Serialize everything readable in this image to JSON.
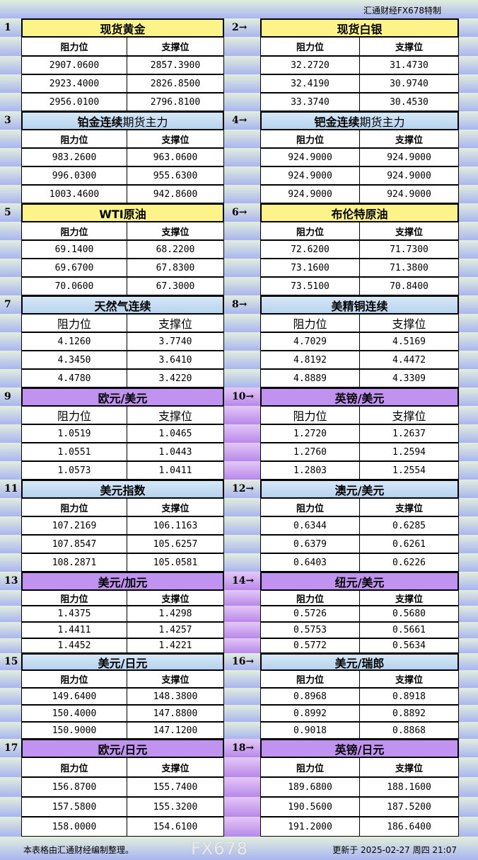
{
  "header": {
    "brand": "汇通财经FX678特制"
  },
  "labels": {
    "resistance": "阻力位",
    "support": "支撑位"
  },
  "colors": {
    "yellow": "#fdf489",
    "blue": "#c6dff2",
    "purple": "#c193f0"
  },
  "sections": [
    {
      "color": "yellow",
      "left": {
        "num": "1",
        "title": "现货黄金",
        "title_normal": "",
        "rows": [
          [
            "2907.0600",
            "2857.3900"
          ],
          [
            "2923.4000",
            "2826.8500"
          ],
          [
            "2956.0100",
            "2796.8100"
          ]
        ]
      },
      "right": {
        "num": "2→",
        "title": "现货白银",
        "title_normal": "",
        "rows": [
          [
            "32.2720",
            "31.4730"
          ],
          [
            "32.4190",
            "30.9740"
          ],
          [
            "33.3740",
            "30.4530"
          ]
        ]
      }
    },
    {
      "color": "blue",
      "left": {
        "num": "3",
        "title": "铂金连续",
        "title_normal": "期货主力",
        "rows": [
          [
            "983.2600",
            "963.0600"
          ],
          [
            "996.0300",
            "955.6300"
          ],
          [
            "1003.4600",
            "942.8600"
          ]
        ]
      },
      "right": {
        "num": "4→",
        "title": "钯金连续",
        "title_normal": "期货主力",
        "rows": [
          [
            "924.9000",
            "924.9000"
          ],
          [
            "924.9000",
            "924.9000"
          ],
          [
            "924.9000",
            "924.9000"
          ]
        ]
      }
    },
    {
      "color": "yellow",
      "left": {
        "num": "5",
        "title": "WTI原油",
        "title_normal": "",
        "rows": [
          [
            "69.1400",
            "68.2200"
          ],
          [
            "69.6700",
            "67.8300"
          ],
          [
            "70.0600",
            "67.3000"
          ]
        ]
      },
      "right": {
        "num": "6→",
        "title": "布伦特原油",
        "title_normal": "",
        "rows": [
          [
            "72.6200",
            "71.7300"
          ],
          [
            "73.1600",
            "71.3800"
          ],
          [
            "73.5100",
            "70.8400"
          ]
        ]
      }
    },
    {
      "color": "blue",
      "left": {
        "num": "7",
        "title": "天然气连续",
        "title_normal": "",
        "rows": [
          [
            "4.1260",
            "3.7740"
          ],
          [
            "4.3450",
            "3.6410"
          ],
          [
            "4.4780",
            "3.4220"
          ]
        ]
      },
      "right": {
        "num": "8→",
        "title": "美精铜连续",
        "title_normal": "",
        "rows": [
          [
            "4.7029",
            "4.5169"
          ],
          [
            "4.8192",
            "4.4472"
          ],
          [
            "4.8889",
            "4.3309"
          ]
        ]
      }
    },
    {
      "color": "purple",
      "left": {
        "num": "9",
        "title": "欧元/美元",
        "title_normal": "",
        "rows": [
          [
            "1.0519",
            "1.0465"
          ],
          [
            "1.0551",
            "1.0443"
          ],
          [
            "1.0573",
            "1.0411"
          ]
        ]
      },
      "right": {
        "num": "10→",
        "title": "英镑/美元",
        "title_normal": "",
        "rows": [
          [
            "1.2720",
            "1.2637"
          ],
          [
            "1.2760",
            "1.2594"
          ],
          [
            "1.2803",
            "1.2554"
          ]
        ]
      }
    },
    {
      "color": "blue",
      "left": {
        "num": "11",
        "title": "美元指数",
        "title_normal": "",
        "rows": [
          [
            "107.2169",
            "106.1163"
          ],
          [
            "107.8547",
            "105.6257"
          ],
          [
            "108.2871",
            "105.0581"
          ]
        ]
      },
      "right": {
        "num": "12→",
        "title": "澳元/美元",
        "title_normal": "",
        "rows": [
          [
            "0.6344",
            "0.6285"
          ],
          [
            "0.6379",
            "0.6261"
          ],
          [
            "0.6403",
            "0.6226"
          ]
        ]
      }
    },
    {
      "color": "purple",
      "left": {
        "num": "13",
        "title": "美元/加元",
        "title_normal": "",
        "rows": [
          [
            "1.4375",
            "1.4298"
          ],
          [
            "1.4411",
            "1.4257"
          ],
          [
            "1.4452",
            "1.4221"
          ]
        ]
      },
      "right": {
        "num": "14→",
        "title": "纽元/美元",
        "title_normal": "",
        "rows": [
          [
            "0.5726",
            "0.5680"
          ],
          [
            "0.5753",
            "0.5661"
          ],
          [
            "0.5772",
            "0.5634"
          ]
        ]
      }
    },
    {
      "color": "blue",
      "left": {
        "num": "15",
        "title": "美元/日元",
        "title_normal": "",
        "rows": [
          [
            "149.6400",
            "148.3800"
          ],
          [
            "150.4000",
            "147.8800"
          ],
          [
            "150.9000",
            "147.1200"
          ]
        ]
      },
      "right": {
        "num": "16→",
        "title": "美元/瑞郎",
        "title_normal": "",
        "rows": [
          [
            "0.8968",
            "0.8918"
          ],
          [
            "0.8992",
            "0.8892"
          ],
          [
            "0.9018",
            "0.8868"
          ]
        ]
      }
    },
    {
      "color": "purple",
      "left": {
        "num": "17",
        "title": "欧元/日元",
        "title_normal": "",
        "rows": [
          [
            "156.8700",
            "155.7400"
          ],
          [
            "157.5800",
            "155.3200"
          ],
          [
            "158.0000",
            "154.6100"
          ]
        ]
      },
      "right": {
        "num": "18→",
        "title": "英镑/日元",
        "title_normal": "",
        "rows": [
          [
            "189.6800",
            "188.1600"
          ],
          [
            "190.5600",
            "187.5200"
          ],
          [
            "191.2000",
            "186.6400"
          ]
        ]
      }
    }
  ],
  "footer": {
    "note": "本表格由汇通财经编制整理。",
    "updated": "更新于 2025-02-27 周四 21:07"
  },
  "watermark": "FX678"
}
